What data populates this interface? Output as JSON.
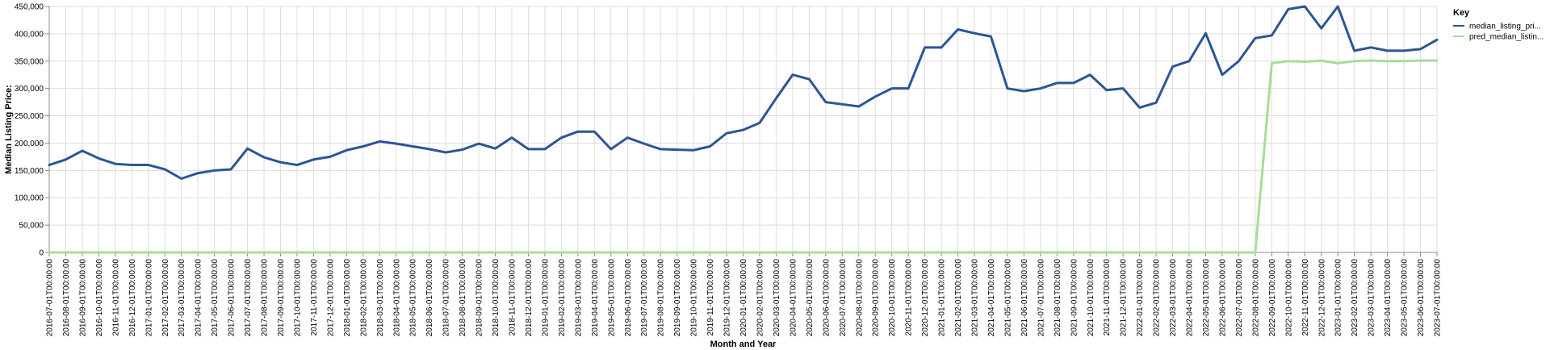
{
  "chart_data": {
    "type": "line",
    "xlabel": "Month and Year",
    "ylabel": "Median Listing Price:",
    "ylim": [
      0,
      450000
    ],
    "yticks": [
      "0",
      "50,000",
      "100,000",
      "150,000",
      "200,000",
      "250,000",
      "300,000",
      "350,000",
      "400,000",
      "450,000"
    ],
    "ytick_values": [
      0,
      50000,
      100000,
      150000,
      200000,
      250000,
      300000,
      350000,
      400000,
      450000
    ],
    "grid": true,
    "legend_position": "right",
    "legend_title": "Key",
    "x": [
      "2016-07-01T00:00:00",
      "2016-08-01T00:00:00",
      "2016-09-01T00:00:00",
      "2016-10-01T00:00:00",
      "2016-11-01T00:00:00",
      "2016-12-01T00:00:00",
      "2017-01-01T00:00:00",
      "2017-02-01T00:00:00",
      "2017-03-01T00:00:00",
      "2017-04-01T00:00:00",
      "2017-05-01T00:00:00",
      "2017-06-01T00:00:00",
      "2017-07-01T00:00:00",
      "2017-08-01T00:00:00",
      "2017-09-01T00:00:00",
      "2017-10-01T00:00:00",
      "2017-11-01T00:00:00",
      "2017-12-01T00:00:00",
      "2018-01-01T00:00:00",
      "2018-02-01T00:00:00",
      "2018-03-01T00:00:00",
      "2018-04-01T00:00:00",
      "2018-05-01T00:00:00",
      "2018-06-01T00:00:00",
      "2018-07-01T00:00:00",
      "2018-08-01T00:00:00",
      "2018-09-01T00:00:00",
      "2018-10-01T00:00:00",
      "2018-11-01T00:00:00",
      "2018-12-01T00:00:00",
      "2019-01-01T00:00:00",
      "2019-02-01T00:00:00",
      "2019-03-01T00:00:00",
      "2019-04-01T00:00:00",
      "2019-05-01T00:00:00",
      "2019-06-01T00:00:00",
      "2019-07-01T00:00:00",
      "2019-08-01T00:00:00",
      "2019-09-01T00:00:00",
      "2019-10-01T00:00:00",
      "2019-11-01T00:00:00",
      "2019-12-01T00:00:00",
      "2020-01-01T00:00:00",
      "2020-02-01T00:00:00",
      "2020-03-01T00:00:00",
      "2020-04-01T00:00:00",
      "2020-05-01T00:00:00",
      "2020-06-01T00:00:00",
      "2020-07-01T00:00:00",
      "2020-08-01T00:00:00",
      "2020-09-01T00:00:00",
      "2020-10-01T00:00:00",
      "2020-11-01T00:00:00",
      "2020-12-01T00:00:00",
      "2021-01-01T00:00:00",
      "2021-02-01T00:00:00",
      "2021-03-01T00:00:00",
      "2021-04-01T00:00:00",
      "2021-05-01T00:00:00",
      "2021-06-01T00:00:00",
      "2021-07-01T00:00:00",
      "2021-08-01T00:00:00",
      "2021-09-01T00:00:00",
      "2021-10-01T00:00:00",
      "2021-11-01T00:00:00",
      "2021-12-01T00:00:00",
      "2022-01-01T00:00:00",
      "2022-02-01T00:00:00",
      "2022-03-01T00:00:00",
      "2022-04-01T00:00:00",
      "2022-05-01T00:00:00",
      "2022-06-01T00:00:00",
      "2022-07-01T00:00:00",
      "2022-08-01T00:00:00",
      "2022-09-01T00:00:00",
      "2022-10-01T00:00:00",
      "2022-11-01T00:00:00",
      "2022-12-01T00:00:00",
      "2023-01-01T00:00:00",
      "2023-02-01T00:00:00",
      "2023-03-01T00:00:00",
      "2023-04-01T00:00:00",
      "2023-05-01T00:00:00",
      "2023-06-01T00:00:00",
      "2023-07-01T00:00:00"
    ],
    "series": [
      {
        "name": "median_listing_pri...",
        "color": "#2c5596",
        "values": [
          160000,
          170000,
          186000,
          172000,
          162000,
          160000,
          160000,
          152000,
          135000,
          145000,
          150000,
          152000,
          190000,
          174000,
          165000,
          160000,
          170000,
          175000,
          187000,
          194000,
          203000,
          199000,
          194000,
          189000,
          183000,
          188000,
          199000,
          190000,
          210000,
          189000,
          189000,
          210000,
          221000,
          221000,
          189000,
          210000,
          199000,
          189000,
          188000,
          187000,
          194000,
          218000,
          224000,
          237000,
          282000,
          325000,
          317000,
          275000,
          271000,
          267000,
          285000,
          300000,
          300000,
          375000,
          375000,
          408000,
          401000,
          395000,
          300000,
          295000,
          300000,
          310000,
          310000,
          325000,
          297000,
          300000,
          265000,
          274000,
          340000,
          350000,
          401000,
          325000,
          350000,
          392000,
          397000,
          445000,
          450000,
          410000,
          450000,
          369000,
          375000,
          369000,
          369000,
          372000,
          389000
        ]
      },
      {
        "name": "pred_median_listin...",
        "color": "#a6dd9b",
        "values": [
          0,
          0,
          0,
          0,
          0,
          0,
          0,
          0,
          0,
          0,
          0,
          0,
          0,
          0,
          0,
          0,
          0,
          0,
          0,
          0,
          0,
          0,
          0,
          0,
          0,
          0,
          0,
          0,
          0,
          0,
          0,
          0,
          0,
          0,
          0,
          0,
          0,
          0,
          0,
          0,
          0,
          0,
          0,
          0,
          0,
          0,
          0,
          0,
          0,
          0,
          0,
          0,
          0,
          0,
          0,
          0,
          0,
          0,
          0,
          0,
          0,
          0,
          0,
          0,
          0,
          0,
          0,
          0,
          0,
          0,
          0,
          0,
          0,
          0,
          346000,
          350000,
          349000,
          351000,
          346000,
          350000,
          351000,
          350000,
          350000,
          351000,
          351000
        ]
      }
    ]
  }
}
